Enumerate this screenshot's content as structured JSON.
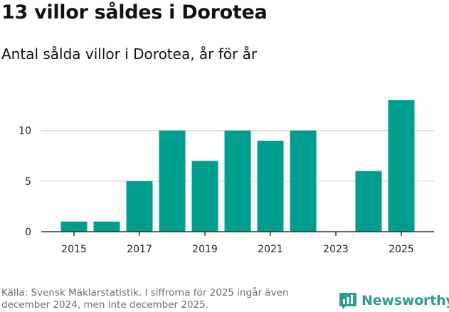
{
  "header": {
    "title": "13 villor såldes i Dorotea",
    "subtitle": "Antal sålda villor i Dorotea, år för år"
  },
  "footer": {
    "source": "Källa: Svensk Mäklarstatistik. I siffrorna för 2025 ingår även december 2024, men inte december 2025."
  },
  "brand": {
    "name": "Newsworthy",
    "icon": "newsworthy-logo-icon",
    "color": "#2a9d8f"
  },
  "chart_data": {
    "type": "bar",
    "categories": [
      "2015",
      "2016",
      "2017",
      "2018",
      "2019",
      "2020",
      "2021",
      "2022",
      "2023",
      "2024",
      "2025"
    ],
    "values": [
      1,
      1,
      5,
      10,
      7,
      10,
      9,
      10,
      0,
      6,
      13
    ],
    "x_tick_labels": [
      "2015",
      "2017",
      "2019",
      "2021",
      "2023",
      "2025"
    ],
    "y_ticks": [
      0,
      5,
      10
    ],
    "ylim": [
      0,
      13
    ],
    "grid": true,
    "bar_color": "#009e8f",
    "title": "13 villor såldes i Dorotea",
    "subtitle": "Antal sålda villor i Dorotea, år för år",
    "xlabel": "",
    "ylabel": ""
  }
}
